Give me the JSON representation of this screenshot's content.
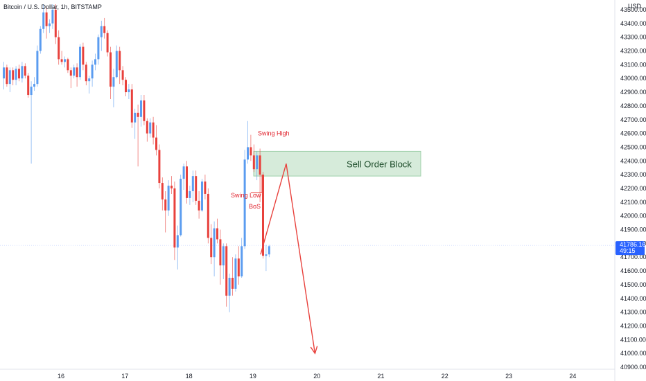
{
  "header": {
    "title": "Bitcoin / U.S. Dollar, 1h, BITSTAMP",
    "currency": "USD"
  },
  "price_axis": {
    "labels": [
      "43500.00",
      "43400.00",
      "43300.00",
      "43200.00",
      "43100.00",
      "43000.00",
      "42900.00",
      "42800.00",
      "42700.00",
      "42600.00",
      "42500.00",
      "42400.00",
      "42300.00",
      "42200.00",
      "42100.00",
      "42000.00",
      "41900.00",
      "41800.00",
      "41700.00",
      "41600.00",
      "41500.00",
      "41400.00",
      "41300.00",
      "41200.00",
      "41100.00",
      "41000.00",
      "40900.00"
    ]
  },
  "time_axis": {
    "labels": [
      "16",
      "17",
      "18",
      "19",
      "20",
      "21",
      "22",
      "23",
      "24"
    ]
  },
  "last_price": {
    "value": "41786.16",
    "countdown": "49:15",
    "color": "#2962ff"
  },
  "annotations": {
    "swing_high": "Swing High",
    "swing_low": "Swing Low",
    "bos": "BoS",
    "sell_order_block": "Sell Order Block"
  },
  "colors": {
    "up": "#5b9cf0",
    "down": "#e8413c",
    "order_block_fill": "#cfe8d4",
    "order_block_border": "#8cc79a",
    "arrow": "#e8413c"
  },
  "chart_data": {
    "type": "candlestick",
    "symbol": "Bitcoin / U.S. Dollar",
    "interval": "1h",
    "exchange": "BITSTAMP",
    "ylim": [
      40870,
      43540
    ],
    "x_day_labels": [
      "16",
      "17",
      "18",
      "19",
      "20",
      "21",
      "22",
      "23",
      "24"
    ],
    "candles": [
      {
        "o": 43000,
        "h": 43120,
        "l": 42920,
        "c": 43080
      },
      {
        "o": 43080,
        "h": 43100,
        "l": 42940,
        "c": 42960
      },
      {
        "o": 42960,
        "h": 43080,
        "l": 42900,
        "c": 43060
      },
      {
        "o": 43060,
        "h": 43080,
        "l": 42950,
        "c": 42990
      },
      {
        "o": 42990,
        "h": 43090,
        "l": 42950,
        "c": 43070
      },
      {
        "o": 43070,
        "h": 43100,
        "l": 42980,
        "c": 43000
      },
      {
        "o": 43000,
        "h": 43120,
        "l": 42970,
        "c": 43090
      },
      {
        "o": 43090,
        "h": 43110,
        "l": 43000,
        "c": 43020
      },
      {
        "o": 43020,
        "h": 43040,
        "l": 42860,
        "c": 42880
      },
      {
        "o": 42880,
        "h": 42980,
        "l": 42380,
        "c": 42940
      },
      {
        "o": 42940,
        "h": 43010,
        "l": 42910,
        "c": 42960
      },
      {
        "o": 42960,
        "h": 43240,
        "l": 42940,
        "c": 43200
      },
      {
        "o": 43200,
        "h": 43380,
        "l": 43180,
        "c": 43360
      },
      {
        "o": 43360,
        "h": 43540,
        "l": 43330,
        "c": 43480
      },
      {
        "o": 43480,
        "h": 43520,
        "l": 43290,
        "c": 43380
      },
      {
        "o": 43380,
        "h": 43430,
        "l": 43330,
        "c": 43400
      },
      {
        "o": 43400,
        "h": 43540,
        "l": 43360,
        "c": 43500
      },
      {
        "o": 43500,
        "h": 43540,
        "l": 43250,
        "c": 43300
      },
      {
        "o": 43300,
        "h": 43350,
        "l": 43100,
        "c": 43140
      },
      {
        "o": 43140,
        "h": 43200,
        "l": 43100,
        "c": 43120
      },
      {
        "o": 43120,
        "h": 43160,
        "l": 43080,
        "c": 43140
      },
      {
        "o": 43140,
        "h": 43150,
        "l": 43040,
        "c": 43060
      },
      {
        "o": 43060,
        "h": 43080,
        "l": 42930,
        "c": 43020
      },
      {
        "o": 43020,
        "h": 43100,
        "l": 43000,
        "c": 43080
      },
      {
        "o": 43080,
        "h": 43110,
        "l": 42940,
        "c": 43010
      },
      {
        "o": 43010,
        "h": 43250,
        "l": 42990,
        "c": 43230
      },
      {
        "o": 43230,
        "h": 43260,
        "l": 43060,
        "c": 43100
      },
      {
        "o": 43100,
        "h": 43120,
        "l": 42950,
        "c": 42980
      },
      {
        "o": 42980,
        "h": 43020,
        "l": 42890,
        "c": 43000
      },
      {
        "o": 43000,
        "h": 43130,
        "l": 42940,
        "c": 43100
      },
      {
        "o": 43100,
        "h": 43180,
        "l": 43060,
        "c": 43140
      },
      {
        "o": 43140,
        "h": 43320,
        "l": 43100,
        "c": 43300
      },
      {
        "o": 43300,
        "h": 43420,
        "l": 43200,
        "c": 43380
      },
      {
        "o": 43380,
        "h": 43440,
        "l": 43290,
        "c": 43330
      },
      {
        "o": 43330,
        "h": 43350,
        "l": 43160,
        "c": 43190
      },
      {
        "o": 43190,
        "h": 43230,
        "l": 42850,
        "c": 42940
      },
      {
        "o": 42940,
        "h": 43070,
        "l": 42790,
        "c": 43010
      },
      {
        "o": 43010,
        "h": 43240,
        "l": 43000,
        "c": 43200
      },
      {
        "o": 43200,
        "h": 43230,
        "l": 42960,
        "c": 43060
      },
      {
        "o": 43060,
        "h": 43090,
        "l": 42950,
        "c": 42990
      },
      {
        "o": 42990,
        "h": 43010,
        "l": 42870,
        "c": 42900
      },
      {
        "o": 42900,
        "h": 42960,
        "l": 42850,
        "c": 42920
      },
      {
        "o": 42920,
        "h": 42960,
        "l": 42640,
        "c": 42680
      },
      {
        "o": 42680,
        "h": 42780,
        "l": 42560,
        "c": 42750
      },
      {
        "o": 42750,
        "h": 42810,
        "l": 42360,
        "c": 42720
      },
      {
        "o": 42720,
        "h": 42880,
        "l": 42650,
        "c": 42840
      },
      {
        "o": 42840,
        "h": 42880,
        "l": 42660,
        "c": 42690
      },
      {
        "o": 42690,
        "h": 42710,
        "l": 42540,
        "c": 42600
      },
      {
        "o": 42600,
        "h": 42710,
        "l": 42570,
        "c": 42680
      },
      {
        "o": 42680,
        "h": 42720,
        "l": 42520,
        "c": 42570
      },
      {
        "o": 42570,
        "h": 42660,
        "l": 42440,
        "c": 42480
      },
      {
        "o": 42480,
        "h": 42520,
        "l": 42200,
        "c": 42240
      },
      {
        "o": 42240,
        "h": 42280,
        "l": 42040,
        "c": 42120
      },
      {
        "o": 42120,
        "h": 42180,
        "l": 41880,
        "c": 42040
      },
      {
        "o": 42040,
        "h": 42260,
        "l": 42000,
        "c": 42220
      },
      {
        "o": 42220,
        "h": 42290,
        "l": 42160,
        "c": 42200
      },
      {
        "o": 42200,
        "h": 42250,
        "l": 41680,
        "c": 41770
      },
      {
        "o": 41770,
        "h": 41930,
        "l": 41610,
        "c": 41860
      },
      {
        "o": 41860,
        "h": 42300,
        "l": 41850,
        "c": 42270
      },
      {
        "o": 42270,
        "h": 42380,
        "l": 42190,
        "c": 42360
      },
      {
        "o": 42360,
        "h": 42400,
        "l": 42090,
        "c": 42130
      },
      {
        "o": 42130,
        "h": 42220,
        "l": 42080,
        "c": 42180
      },
      {
        "o": 42180,
        "h": 42330,
        "l": 42100,
        "c": 42290
      },
      {
        "o": 42290,
        "h": 42330,
        "l": 42080,
        "c": 42110
      },
      {
        "o": 42110,
        "h": 42180,
        "l": 41980,
        "c": 42040
      },
      {
        "o": 42040,
        "h": 42270,
        "l": 42030,
        "c": 42250
      },
      {
        "o": 42250,
        "h": 42300,
        "l": 42120,
        "c": 42160
      },
      {
        "o": 42160,
        "h": 42200,
        "l": 41800,
        "c": 41840
      },
      {
        "o": 41840,
        "h": 41940,
        "l": 41650,
        "c": 41700
      },
      {
        "o": 41700,
        "h": 41960,
        "l": 41560,
        "c": 41910
      },
      {
        "o": 41910,
        "h": 41980,
        "l": 41800,
        "c": 41830
      },
      {
        "o": 41830,
        "h": 41900,
        "l": 41500,
        "c": 41640
      },
      {
        "o": 41640,
        "h": 41800,
        "l": 41540,
        "c": 41780
      },
      {
        "o": 41780,
        "h": 41800,
        "l": 41340,
        "c": 41420
      },
      {
        "o": 41420,
        "h": 41580,
        "l": 41300,
        "c": 41550
      },
      {
        "o": 41550,
        "h": 41700,
        "l": 41420,
        "c": 41470
      },
      {
        "o": 41470,
        "h": 41720,
        "l": 41450,
        "c": 41690
      },
      {
        "o": 41690,
        "h": 41780,
        "l": 41500,
        "c": 41560
      },
      {
        "o": 41560,
        "h": 41840,
        "l": 41550,
        "c": 41780
      },
      {
        "o": 41780,
        "h": 42480,
        "l": 41760,
        "c": 42410
      },
      {
        "o": 42410,
        "h": 42690,
        "l": 42380,
        "c": 42500
      },
      {
        "o": 42500,
        "h": 42590,
        "l": 42400,
        "c": 42440
      },
      {
        "o": 42440,
        "h": 42520,
        "l": 42320,
        "c": 42340
      },
      {
        "o": 42340,
        "h": 42470,
        "l": 42260,
        "c": 42440
      },
      {
        "o": 42440,
        "h": 42490,
        "l": 42100,
        "c": 42300
      },
      {
        "o": 42300,
        "h": 42320,
        "l": 41690,
        "c": 41710
      },
      {
        "o": 41710,
        "h": 41790,
        "l": 41600,
        "c": 41720
      },
      {
        "o": 41720,
        "h": 41790,
        "l": 41700,
        "c": 41780
      }
    ],
    "order_block": {
      "label": "Sell Order Block",
      "top": 42470,
      "bottom": 42290
    },
    "annotations": [
      {
        "text": "Swing High",
        "price": 42600
      },
      {
        "text": "Swing Low",
        "price": 42150
      },
      {
        "text": "BoS",
        "price": 42070
      }
    ],
    "projection": [
      {
        "day": 19.12,
        "price": 41720
      },
      {
        "day": 19.52,
        "price": 42380
      },
      {
        "day": 19.97,
        "price": 41000
      }
    ],
    "last_price": 41786.16
  }
}
